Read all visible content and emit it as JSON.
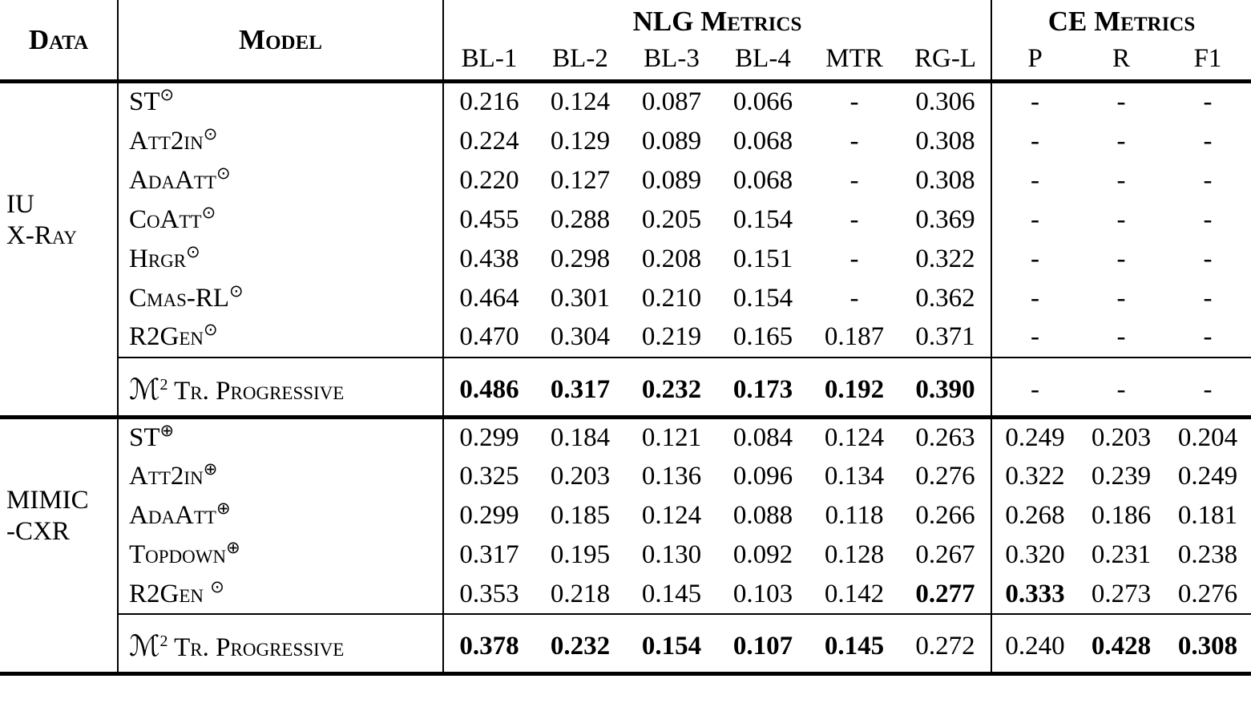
{
  "colors": {
    "text": "#000000",
    "background": "#ffffff",
    "rules": "#000000"
  },
  "header": {
    "data": "Data",
    "model": "Model",
    "nlg_group": "NLG Metrics",
    "ce_group": "CE Metrics",
    "nlg_cols": [
      "BL-1",
      "BL-2",
      "BL-3",
      "BL-4",
      "MTR",
      "RG-L"
    ],
    "ce_cols": [
      "P",
      "R",
      "F1"
    ]
  },
  "sections": [
    {
      "dataset_lines": [
        "IU",
        "X-Ray"
      ],
      "rows": [
        {
          "model": "ST",
          "sup": "⊙",
          "values": [
            "0.216",
            "0.124",
            "0.087",
            "0.066",
            "-",
            "0.306",
            "-",
            "-",
            "-"
          ],
          "bold": []
        },
        {
          "model": "Att2in",
          "sup": "⊙",
          "values": [
            "0.224",
            "0.129",
            "0.089",
            "0.068",
            "-",
            "0.308",
            "-",
            "-",
            "-"
          ],
          "bold": []
        },
        {
          "model": "AdaAtt",
          "sup": "⊙",
          "values": [
            "0.220",
            "0.127",
            "0.089",
            "0.068",
            "-",
            "0.308",
            "-",
            "-",
            "-"
          ],
          "bold": []
        },
        {
          "model": "CoAtt",
          "sup": "⊙",
          "values": [
            "0.455",
            "0.288",
            "0.205",
            "0.154",
            "-",
            "0.369",
            "-",
            "-",
            "-"
          ],
          "bold": []
        },
        {
          "model": "Hrgr",
          "sup": "⊙",
          "values": [
            "0.438",
            "0.298",
            "0.208",
            "0.151",
            "-",
            "0.322",
            "-",
            "-",
            "-"
          ],
          "bold": []
        },
        {
          "model": "Cmas-RL",
          "sup": "⊙",
          "values": [
            "0.464",
            "0.301",
            "0.210",
            "0.154",
            "-",
            "0.362",
            "-",
            "-",
            "-"
          ],
          "bold": []
        },
        {
          "model": "R2Gen",
          "sup": "⊙",
          "values": [
            "0.470",
            "0.304",
            "0.219",
            "0.165",
            "0.187",
            "0.371",
            "-",
            "-",
            "-"
          ],
          "bold": []
        }
      ],
      "final_row": {
        "model_prefix": "ℳ",
        "model_exp": "2",
        "model_name": "Tr. Progressive",
        "values": [
          "0.486",
          "0.317",
          "0.232",
          "0.173",
          "0.192",
          "0.390",
          "-",
          "-",
          "-"
        ],
        "bold": [
          0,
          1,
          2,
          3,
          4,
          5
        ]
      }
    },
    {
      "dataset_lines": [
        "MIMIC",
        "-CXR"
      ],
      "rows": [
        {
          "model": "ST",
          "sup": "⊕",
          "values": [
            "0.299",
            "0.184",
            "0.121",
            "0.084",
            "0.124",
            "0.263",
            "0.249",
            "0.203",
            "0.204"
          ],
          "bold": []
        },
        {
          "model": "Att2in",
          "sup": "⊕",
          "values": [
            "0.325",
            "0.203",
            "0.136",
            "0.096",
            "0.134",
            "0.276",
            "0.322",
            "0.239",
            "0.249"
          ],
          "bold": []
        },
        {
          "model": "AdaAtt",
          "sup": "⊕",
          "values": [
            "0.299",
            "0.185",
            "0.124",
            "0.088",
            "0.118",
            "0.266",
            "0.268",
            "0.186",
            "0.181"
          ],
          "bold": []
        },
        {
          "model": "Topdown",
          "sup": "⊕",
          "values": [
            "0.317",
            "0.195",
            "0.130",
            "0.092",
            "0.128",
            "0.267",
            "0.320",
            "0.231",
            "0.238"
          ],
          "bold": []
        },
        {
          "model": "R2Gen ",
          "sup": "⊙",
          "values": [
            "0.353",
            "0.218",
            "0.145",
            "0.103",
            "0.142",
            "0.277",
            "0.333",
            "0.273",
            "0.276"
          ],
          "bold": [
            5,
            6
          ]
        }
      ],
      "final_row": {
        "model_prefix": "ℳ",
        "model_exp": "2",
        "model_name": "Tr. Progressive",
        "values": [
          "0.378",
          "0.232",
          "0.154",
          "0.107",
          "0.145",
          "0.272",
          "0.240",
          "0.428",
          "0.308"
        ],
        "bold": [
          0,
          1,
          2,
          3,
          4,
          7,
          8
        ]
      }
    }
  ]
}
